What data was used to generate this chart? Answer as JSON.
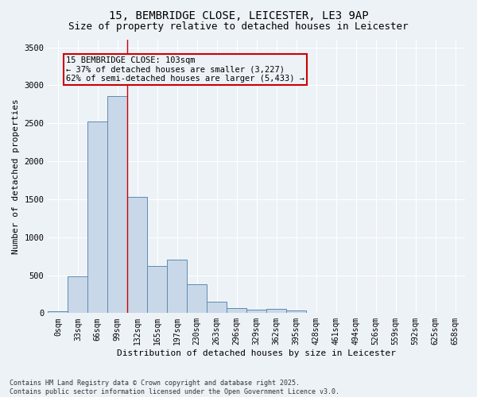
{
  "title_line1": "15, BEMBRIDGE CLOSE, LEICESTER, LE3 9AP",
  "title_line2": "Size of property relative to detached houses in Leicester",
  "xlabel": "Distribution of detached houses by size in Leicester",
  "ylabel": "Number of detached properties",
  "bar_labels": [
    "0sqm",
    "33sqm",
    "66sqm",
    "99sqm",
    "132sqm",
    "165sqm",
    "197sqm",
    "230sqm",
    "263sqm",
    "296sqm",
    "329sqm",
    "362sqm",
    "395sqm",
    "428sqm",
    "461sqm",
    "494sqm",
    "526sqm",
    "559sqm",
    "592sqm",
    "625sqm",
    "658sqm"
  ],
  "bar_values": [
    20,
    480,
    2520,
    2860,
    1530,
    620,
    700,
    380,
    150,
    70,
    50,
    55,
    30,
    5,
    2,
    1,
    0,
    0,
    0,
    0,
    0
  ],
  "bar_color": "#c8d8e8",
  "bar_edge_color": "#5f8ab0",
  "ylim": [
    0,
    3600
  ],
  "yticks": [
    0,
    500,
    1000,
    1500,
    2000,
    2500,
    3000,
    3500
  ],
  "annotation_box_text": "15 BEMBRIDGE CLOSE: 103sqm\n← 37% of detached houses are smaller (3,227)\n62% of semi-detached houses are larger (5,433) →",
  "annotation_box_color": "#cc0000",
  "background_color": "#edf2f7",
  "grid_color": "#ffffff",
  "footnote": "Contains HM Land Registry data © Crown copyright and database right 2025.\nContains public sector information licensed under the Open Government Licence v3.0.",
  "property_line_x": 3.5,
  "title_fontsize": 10,
  "subtitle_fontsize": 9,
  "axis_label_fontsize": 8,
  "tick_fontsize": 7,
  "annotation_fontsize": 7.5
}
